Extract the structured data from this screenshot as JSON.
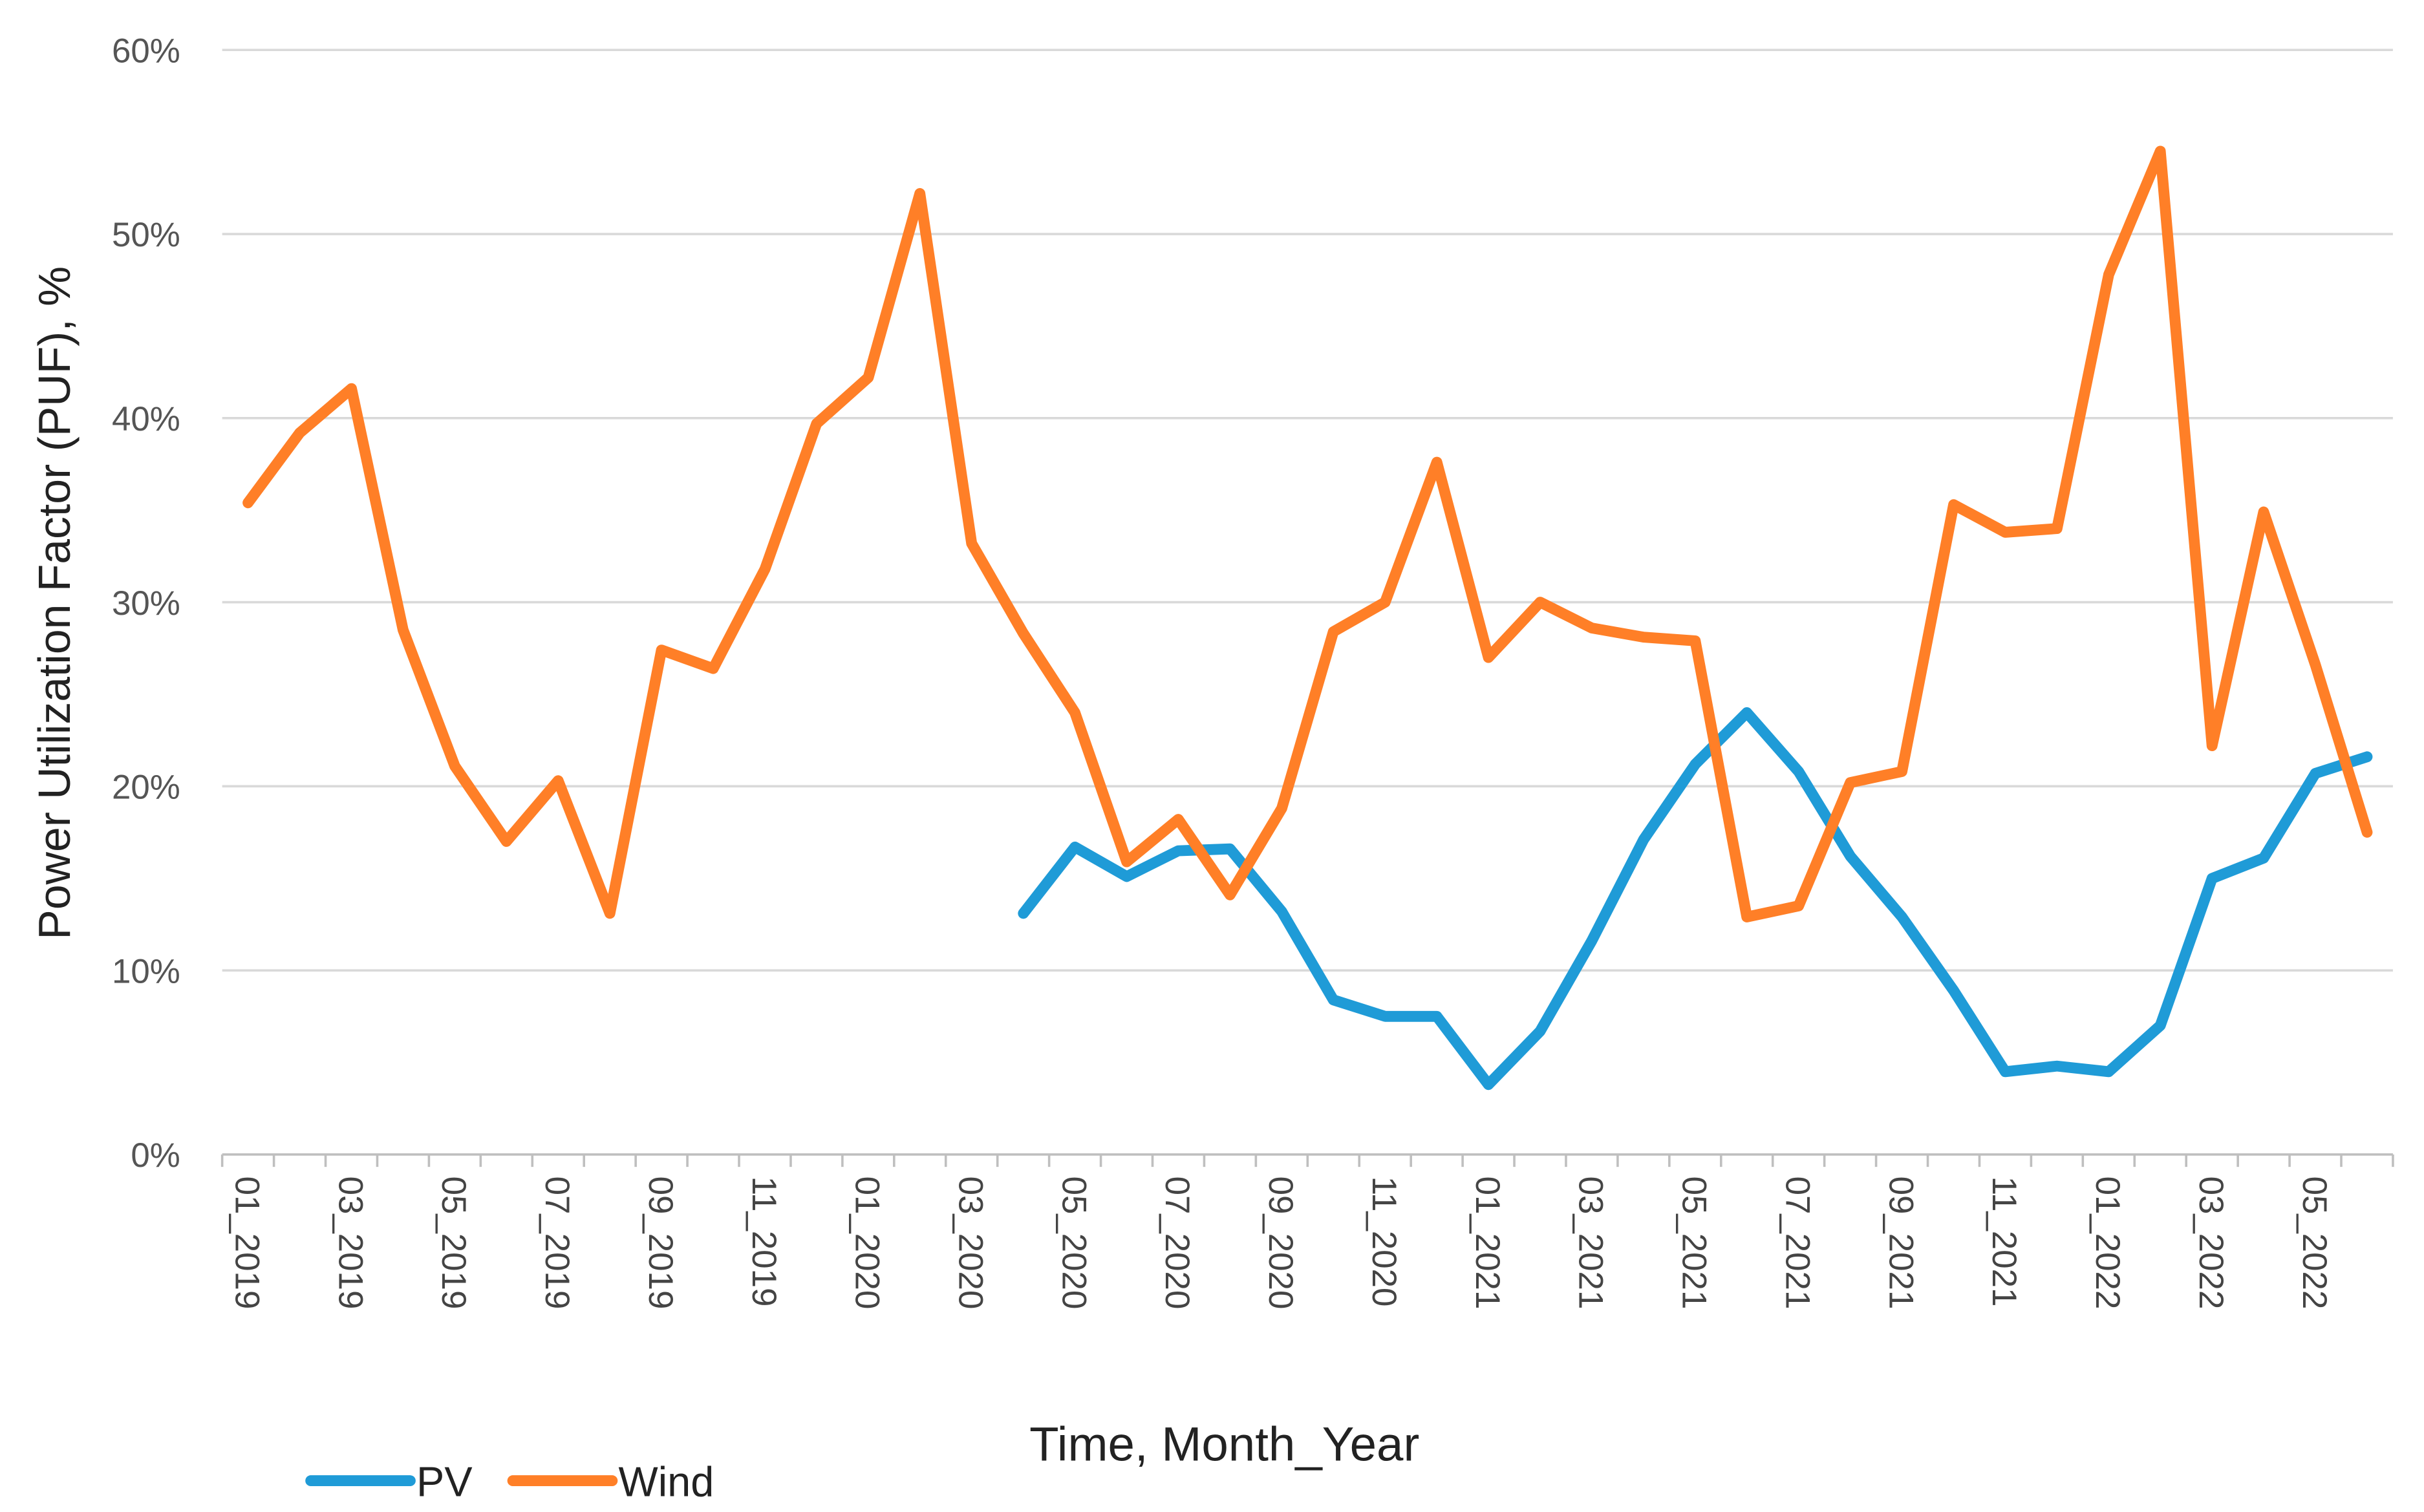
{
  "chart_data": {
    "type": "line",
    "title": "",
    "xlabel": "Time, Month_Year",
    "ylabel": "Power Utilization Factor (PUF), %",
    "ylim": [
      0,
      60
    ],
    "yticks": [
      "0%",
      "10%",
      "20%",
      "30%",
      "40%",
      "50%",
      "60%"
    ],
    "grid": true,
    "legend_position": "bottom-left",
    "categories": [
      "01_2019",
      "02_2019",
      "03_2019",
      "04_2019",
      "05_2019",
      "06_2019",
      "07_2019",
      "08_2019",
      "09_2019",
      "10_2019",
      "11_2019",
      "12_2019",
      "01_2020",
      "02_2020",
      "03_2020",
      "04_2020",
      "05_2020",
      "06_2020",
      "07_2020",
      "08_2020",
      "09_2020",
      "10_2020",
      "11_2020",
      "12_2020",
      "01_2021",
      "02_2021",
      "03_2021",
      "04_2021",
      "05_2021",
      "06_2021",
      "07_2021",
      "08_2021",
      "09_2021",
      "10_2021",
      "11_2021",
      "12_2021",
      "01_2022",
      "02_2022",
      "03_2022",
      "04_2022",
      "05_2022",
      "06_2022"
    ],
    "xtick_labels": [
      "01_2019",
      "03_2019",
      "05_2019",
      "07_2019",
      "09_2019",
      "11_2019",
      "01_2020",
      "03_2020",
      "05_2020",
      "07_2020",
      "09_2020",
      "11_2020",
      "01_2021",
      "03_2021",
      "05_2021",
      "07_2021",
      "09_2021",
      "11_2021",
      "01_2022",
      "03_2022",
      "05_2022"
    ],
    "series": [
      {
        "name": "PV",
        "color": "#1f9bd7",
        "values": [
          null,
          null,
          null,
          null,
          null,
          null,
          null,
          null,
          null,
          null,
          null,
          null,
          null,
          null,
          null,
          13.1,
          16.7,
          15.1,
          16.5,
          16.6,
          13.2,
          8.4,
          7.5,
          7.5,
          3.8,
          6.7,
          11.6,
          17.1,
          21.2,
          24.0,
          20.8,
          16.2,
          12.9,
          8.9,
          4.5,
          4.8,
          4.5,
          7.0,
          15.0,
          16.1,
          20.7,
          21.6
        ]
      },
      {
        "name": "Wind",
        "color": "#ff7f27",
        "values": [
          35.4,
          39.2,
          41.6,
          28.5,
          21.1,
          17.0,
          20.3,
          13.1,
          27.4,
          26.4,
          31.8,
          39.7,
          42.2,
          52.2,
          33.2,
          28.3,
          24.0,
          15.9,
          18.2,
          14.1,
          18.8,
          28.4,
          30.0,
          37.6,
          27.0,
          30.0,
          28.6,
          28.1,
          27.9,
          12.9,
          13.5,
          20.2,
          20.8,
          35.3,
          33.8,
          34.0,
          47.8,
          54.5,
          22.2,
          34.9,
          26.6,
          17.5
        ]
      }
    ]
  }
}
